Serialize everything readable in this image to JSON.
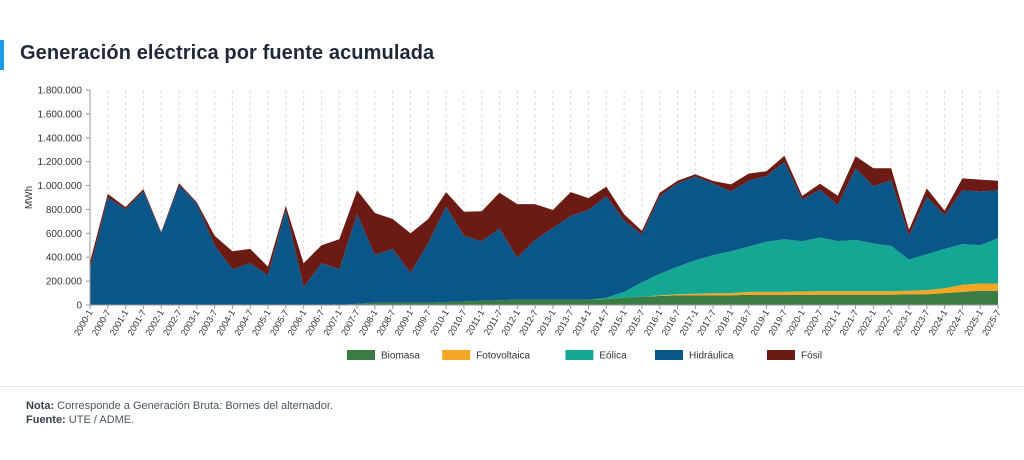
{
  "header": {
    "title": "Generación eléctrica por fuente acumulada"
  },
  "footer": {
    "note_label": "Nota:",
    "note_text": "Corresponde a Generación Bruta: Bornes del alternador.",
    "source_label": "Fuente:",
    "source_text": "UTE / ADME."
  },
  "chart_data": {
    "type": "area",
    "stacked": true,
    "ylabel": "MWh",
    "xlabel": "",
    "ylim": [
      0,
      1800000
    ],
    "yticks": [
      0,
      200000,
      400000,
      600000,
      800000,
      1000000,
      1200000,
      1400000,
      1600000,
      1800000
    ],
    "ytick_labels": [
      "0",
      "200.000",
      "400.000",
      "600.000",
      "800.000",
      "1.000.000",
      "1.200.000",
      "1.400.000",
      "1.600.000",
      "1.800.000"
    ],
    "x_tick_labels": [
      "2000-1",
      "2000-7",
      "2001-1",
      "2001-7",
      "2002-1",
      "2002-7",
      "2003-1",
      "2003-7",
      "2004-1",
      "2004-7",
      "2005-1",
      "2005-7",
      "2006-1",
      "2006-7",
      "2007-1",
      "2007-7",
      "2008-1",
      "2008-7",
      "2009-1",
      "2009-7",
      "2010-1",
      "2010-7",
      "2011-1",
      "2011-7",
      "2012-1",
      "2012-7",
      "2013-1",
      "2013-7",
      "2014-1",
      "2014-7",
      "2015-1",
      "2015-7",
      "2016-1",
      "2016-7",
      "2017-1",
      "2017-7",
      "2018-1",
      "2018-7",
      "2019-1",
      "2019-7",
      "2020-1",
      "2020-7",
      "2021-1",
      "2021-7",
      "2022-1",
      "2022-7",
      "2023-1",
      "2023-7",
      "2024-1",
      "2024-7",
      "2025-1",
      "2025-7"
    ],
    "x_step_months": 6,
    "grid_x": true,
    "grid_y": false,
    "legend_position": "bottom",
    "series": [
      {
        "name": "Biomasa",
        "color": "#3a7d44",
        "values": [
          0,
          0,
          0,
          0,
          0,
          0,
          0,
          0,
          0,
          0,
          0,
          0,
          0,
          0,
          0,
          10000,
          20000,
          20000,
          20000,
          20000,
          25000,
          30000,
          35000,
          40000,
          45000,
          45000,
          45000,
          45000,
          45000,
          50000,
          60000,
          70000,
          75000,
          80000,
          80000,
          80000,
          80000,
          85000,
          85000,
          85000,
          85000,
          85000,
          85000,
          85000,
          85000,
          85000,
          90000,
          90000,
          100000,
          110000,
          120000,
          120000
        ]
      },
      {
        "name": "Fotovoltaica",
        "color": "#f5a623",
        "values": [
          0,
          0,
          0,
          0,
          0,
          0,
          0,
          0,
          0,
          0,
          0,
          0,
          0,
          0,
          0,
          0,
          0,
          0,
          0,
          0,
          0,
          0,
          0,
          0,
          0,
          0,
          0,
          0,
          0,
          0,
          0,
          0,
          5000,
          10000,
          15000,
          18000,
          20000,
          25000,
          25000,
          25000,
          28000,
          30000,
          30000,
          30000,
          30000,
          30000,
          30000,
          35000,
          40000,
          60000,
          60000,
          60000
        ]
      },
      {
        "name": "Eólica",
        "color": "#14a894",
        "values": [
          0,
          0,
          0,
          0,
          0,
          0,
          0,
          0,
          0,
          0,
          0,
          0,
          0,
          0,
          0,
          0,
          0,
          0,
          0,
          0,
          0,
          0,
          0,
          0,
          0,
          0,
          0,
          0,
          0,
          10000,
          50000,
          120000,
          180000,
          230000,
          280000,
          320000,
          350000,
          380000,
          420000,
          440000,
          420000,
          450000,
          420000,
          430000,
          400000,
          380000,
          260000,
          300000,
          330000,
          340000,
          320000,
          380000
        ]
      },
      {
        "name": "Hidráulica",
        "color": "#0b5688",
        "values": [
          300000,
          900000,
          800000,
          950000,
          600000,
          1000000,
          850000,
          500000,
          300000,
          350000,
          250000,
          800000,
          150000,
          350000,
          300000,
          750000,
          400000,
          450000,
          250000,
          500000,
          800000,
          550000,
          500000,
          600000,
          350000,
          500000,
          600000,
          700000,
          750000,
          850000,
          600000,
          400000,
          650000,
          700000,
          700000,
          600000,
          500000,
          550000,
          550000,
          650000,
          350000,
          400000,
          300000,
          600000,
          480000,
          550000,
          200000,
          480000,
          280000,
          450000,
          450000,
          400000
        ]
      },
      {
        "name": "Fósil",
        "color": "#6b1a14",
        "values": [
          60000,
          30000,
          20000,
          20000,
          10000,
          20000,
          10000,
          80000,
          150000,
          120000,
          70000,
          30000,
          200000,
          150000,
          250000,
          200000,
          350000,
          250000,
          330000,
          200000,
          120000,
          200000,
          250000,
          300000,
          450000,
          300000,
          150000,
          200000,
          100000,
          80000,
          50000,
          30000,
          30000,
          20000,
          20000,
          20000,
          60000,
          60000,
          40000,
          50000,
          30000,
          50000,
          80000,
          100000,
          150000,
          100000,
          50000,
          70000,
          40000,
          100000,
          100000,
          80000
        ]
      }
    ]
  }
}
